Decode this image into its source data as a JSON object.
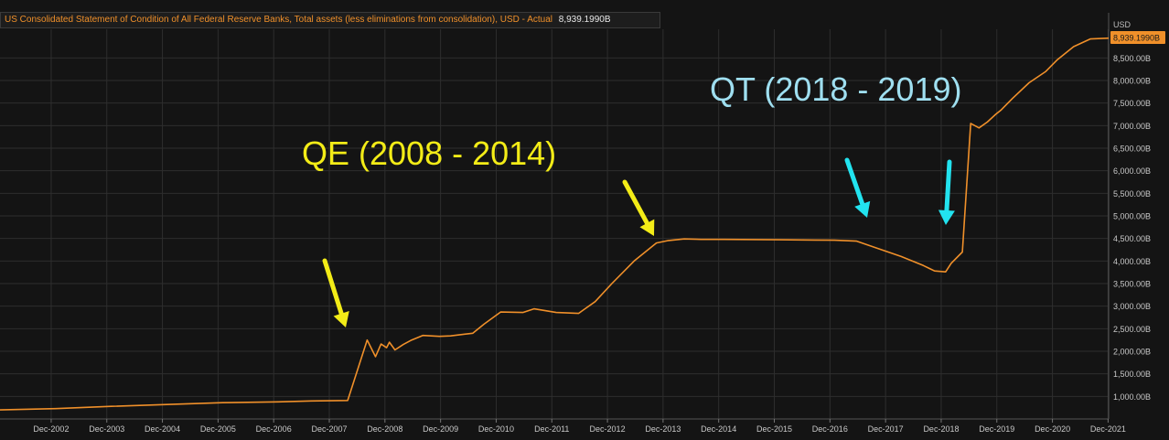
{
  "legend": {
    "series_name": "US Consolidated Statement of Condition of All Federal Reserve Banks, Total assets (less eliminations from consolidation), USD - Actual",
    "last_value": "8,939.1990B"
  },
  "colors": {
    "background": "#141414",
    "line": "#f0902a",
    "grid": "#2e2e2e",
    "qe_arrow": "#f3ec17",
    "qt_arrow": "#22e3ef"
  },
  "annotations": {
    "qe_text": "QE (2008 - 2014)",
    "qt_text": "QT (2018 - 2019)"
  },
  "chart_data": {
    "type": "line",
    "title": "",
    "xlabel": "",
    "ylabel": "",
    "y_unit": "USD",
    "xlim": [
      2002.0,
      2021.93
    ],
    "ylim": [
      500,
      9500
    ],
    "x_ticks": [
      {
        "label": "Dec-2002",
        "x": 2002.92
      },
      {
        "label": "Dec-2003",
        "x": 2003.92
      },
      {
        "label": "Dec-2004",
        "x": 2004.92
      },
      {
        "label": "Dec-2005",
        "x": 2005.92
      },
      {
        "label": "Dec-2006",
        "x": 2006.92
      },
      {
        "label": "Dec-2007",
        "x": 2007.92
      },
      {
        "label": "Dec-2008",
        "x": 2008.92
      },
      {
        "label": "Dec-2009",
        "x": 2009.92
      },
      {
        "label": "Dec-2010",
        "x": 2010.92
      },
      {
        "label": "Dec-2011",
        "x": 2011.92
      },
      {
        "label": "Dec-2012",
        "x": 2012.92
      },
      {
        "label": "Dec-2013",
        "x": 2013.92
      },
      {
        "label": "Dec-2014",
        "x": 2014.92
      },
      {
        "label": "Dec-2015",
        "x": 2015.92
      },
      {
        "label": "Dec-2016",
        "x": 2016.92
      },
      {
        "label": "Dec-2017",
        "x": 2017.92
      },
      {
        "label": "Dec-2018",
        "x": 2018.92
      },
      {
        "label": "Dec-2019",
        "x": 2019.92
      },
      {
        "label": "Dec-2020",
        "x": 2020.92
      },
      {
        "label": "Dec-2021",
        "x": 2021.92
      }
    ],
    "y_ticks": [
      {
        "label": "1,000.00B",
        "v": 1000
      },
      {
        "label": "1,500.00B",
        "v": 1500
      },
      {
        "label": "2,000.00B",
        "v": 2000
      },
      {
        "label": "2,500.00B",
        "v": 2500
      },
      {
        "label": "3,000.00B",
        "v": 3000
      },
      {
        "label": "3,500.00B",
        "v": 3500
      },
      {
        "label": "4,000.00B",
        "v": 4000
      },
      {
        "label": "4,500.00B",
        "v": 4500
      },
      {
        "label": "5,000.00B",
        "v": 5000
      },
      {
        "label": "5,500.00B",
        "v": 5500
      },
      {
        "label": "6,000.00B",
        "v": 6000
      },
      {
        "label": "6,500.00B",
        "v": 6500
      },
      {
        "label": "7,000.00B",
        "v": 7000
      },
      {
        "label": "7,500.00B",
        "v": 7500
      },
      {
        "label": "8,000.00B",
        "v": 8000
      },
      {
        "label": "8,500.00B",
        "v": 8500
      }
    ],
    "series": [
      {
        "x": [
          2002.0,
          2003.0,
          2004.0,
          2005.0,
          2006.0,
          2007.0,
          2007.6,
          2008.25,
          2008.6,
          2008.75,
          2008.85,
          2008.95,
          2009.0,
          2009.1,
          2009.25,
          2009.4,
          2009.6,
          2009.9,
          2010.1,
          2010.5,
          2010.7,
          2011.0,
          2011.4,
          2011.6,
          2012.0,
          2012.4,
          2012.7,
          2013.0,
          2013.4,
          2013.8,
          2014.0,
          2014.3,
          2014.6,
          2015.0,
          2016.0,
          2017.0,
          2017.4,
          2017.8,
          2018.2,
          2018.6,
          2018.8,
          2019.0,
          2019.1,
          2019.3,
          2019.45,
          2019.6,
          2019.75,
          2019.9,
          2020.0,
          2020.2,
          2020.5,
          2020.8,
          2021.0,
          2021.3,
          2021.6,
          2021.93
        ],
        "y": [
          700,
          730,
          780,
          820,
          860,
          880,
          900,
          910,
          2250,
          1880,
          2160,
          2080,
          2200,
          2030,
          2150,
          2250,
          2350,
          2330,
          2340,
          2400,
          2600,
          2870,
          2860,
          2940,
          2860,
          2840,
          3100,
          3500,
          4000,
          4400,
          4450,
          4490,
          4480,
          4480,
          4470,
          4460,
          4440,
          4270,
          4100,
          3900,
          3780,
          3760,
          3950,
          4200,
          7050,
          6950,
          7080,
          7250,
          7350,
          7600,
          7950,
          8200,
          8450,
          8750,
          8920,
          8939
        ]
      }
    ]
  }
}
